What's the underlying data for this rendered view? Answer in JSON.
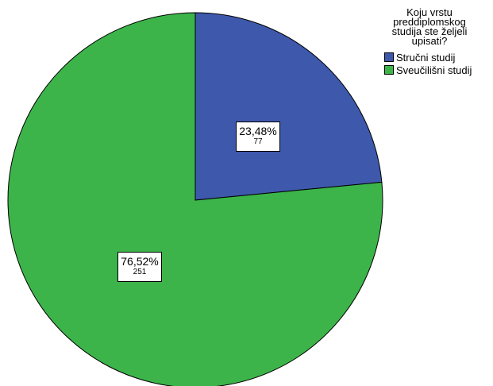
{
  "chart_data": {
    "type": "pie",
    "legend_title": "Koju vrstu preddiplomskog studija ste željeli upisati?",
    "legend_title_lines": [
      "Koju vrstu",
      "preddiplomskog",
      "studija ste željeli",
      "upisati?"
    ],
    "legend_position": "top-right",
    "categories": [
      "Stručni studij",
      "Sveučilišni studij"
    ],
    "values": [
      77,
      251
    ],
    "percent_labels": [
      "23,48%",
      "76,52%"
    ],
    "count_labels": [
      "77",
      "251"
    ],
    "colors": [
      "#3e58ac",
      "#3cb44a"
    ],
    "start_angle_deg": 0,
    "direction": "clockwise"
  }
}
